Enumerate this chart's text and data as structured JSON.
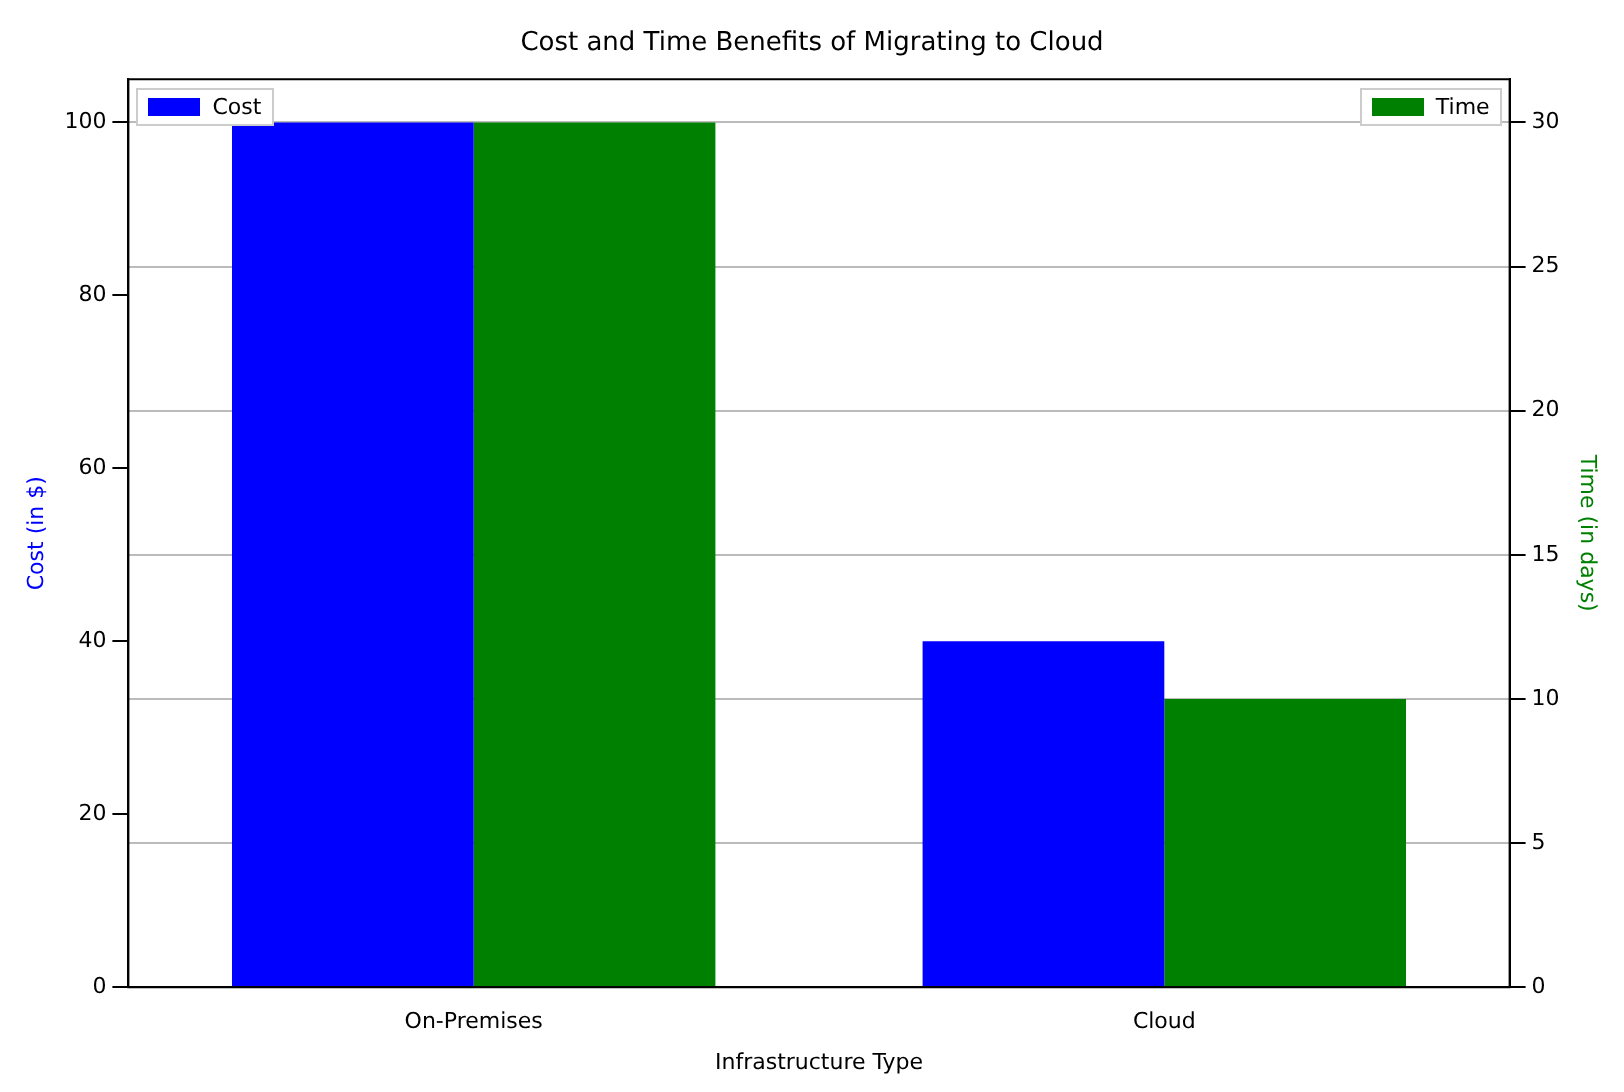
{
  "chart_data": {
    "type": "bar",
    "title": "Cost and Time Benefits of Migrating to Cloud",
    "xlabel": "Infrastructure Type",
    "ylabel": "Cost (in $)",
    "y2label": "Time (in days)",
    "categories": [
      "On-Premises",
      "Cloud"
    ],
    "series": [
      {
        "name": "Cost",
        "color": "#0000ff",
        "values": [
          100,
          40
        ]
      },
      {
        "name": "Time",
        "color": "#008000",
        "values": [
          30,
          10
        ],
        "axis": "y2"
      }
    ],
    "ylim": [
      0,
      105
    ],
    "yticks": [
      0,
      20,
      40,
      60,
      80,
      100
    ],
    "y2lim": [
      0,
      31.5
    ],
    "y2ticks": [
      0,
      5,
      10,
      15,
      20,
      25,
      30
    ],
    "grid": "y",
    "legend": "top"
  }
}
